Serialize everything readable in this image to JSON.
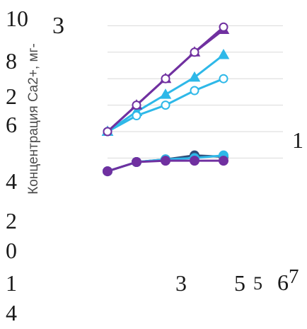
{
  "chart_data": {
    "type": "line",
    "ylabel": "Концентрация Ca2+, мг-",
    "y_ticks": [
      "10",
      "8",
      "6",
      "4",
      "2",
      "0"
    ],
    "x_ticks": [
      "1",
      "3",
      "5"
    ],
    "x": [
      1,
      2,
      3,
      4,
      5
    ],
    "xlim": [
      1,
      5
    ],
    "ylim": [
      0,
      10
    ],
    "grid": true,
    "series": [
      {
        "marker": "triangle",
        "filled": true,
        "color": "#7030a0",
        "values": [
          5.0,
          6.0,
          7.0,
          8.0,
          8.85
        ]
      },
      {
        "marker": "triangle",
        "filled": true,
        "color": "#2eb8e8",
        "values": [
          5.0,
          5.75,
          6.4,
          7.05,
          7.9
        ]
      },
      {
        "marker": "circle",
        "filled": false,
        "color": "#2eb8e8",
        "values": [
          5.0,
          5.6,
          6.0,
          6.55,
          7.0
        ]
      },
      {
        "marker": "circle",
        "filled": false,
        "color": "#7030a0",
        "values": [
          5.0,
          6.0,
          7.0,
          8.0,
          8.95
        ]
      },
      {
        "marker": "circle",
        "filled": true,
        "color": "#2e4d7a",
        "values": [
          3.5,
          3.85,
          3.95,
          4.1,
          4.05
        ]
      },
      {
        "marker": "circle",
        "filled": true,
        "color": "#2eb8e8",
        "values": [
          3.5,
          3.85,
          3.95,
          4.0,
          4.1
        ]
      },
      {
        "marker": "circle",
        "filled": true,
        "color": "#7030a0",
        "values": [
          3.5,
          3.85,
          3.9,
          3.9,
          3.9
        ]
      }
    ],
    "annotations": [
      {
        "text": "3",
        "near": "top-left"
      },
      {
        "text": "1",
        "near": "right"
      },
      {
        "text": "5",
        "near": "bottom-right"
      },
      {
        "text": "6",
        "near": "bottom-right"
      },
      {
        "text": "7",
        "near": "bottom-right"
      },
      {
        "text": "4",
        "near": "bottom-left"
      },
      {
        "text": "2",
        "near": "left"
      }
    ]
  }
}
